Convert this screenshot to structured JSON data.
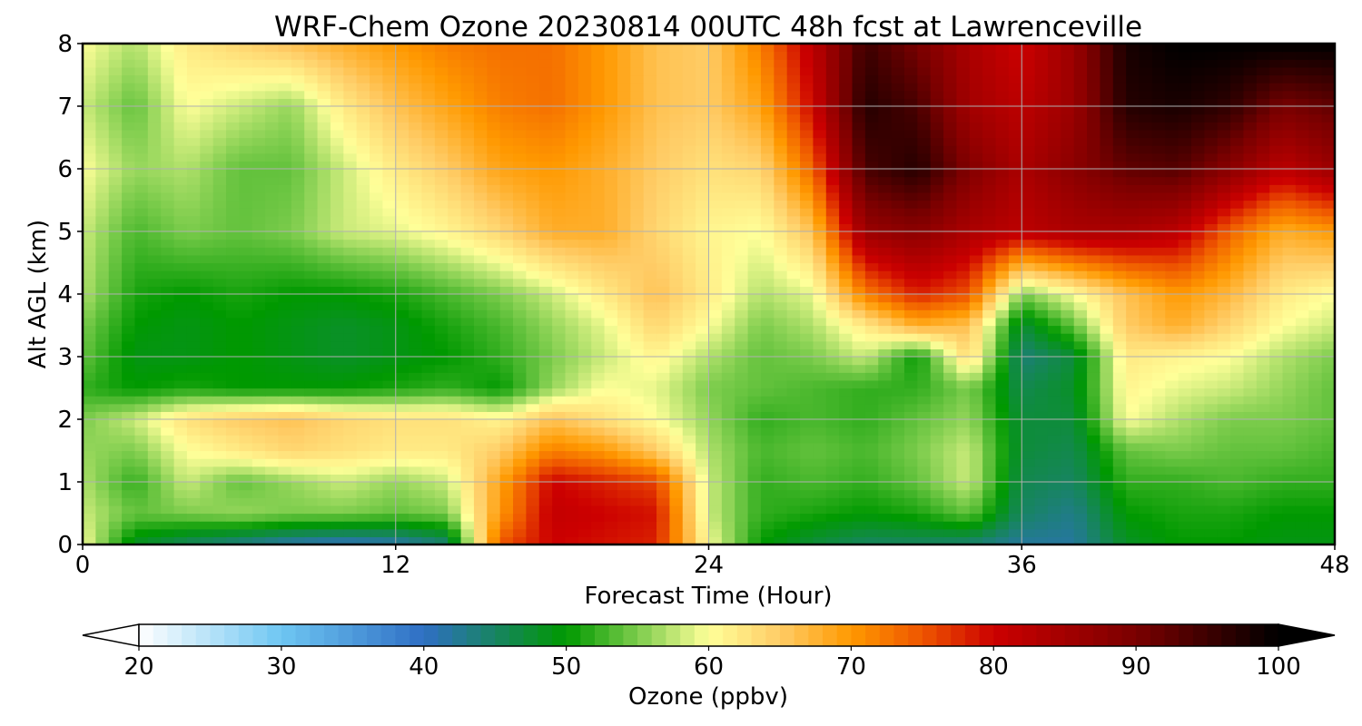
{
  "chart_data": {
    "type": "heatmap",
    "title": "WRF-Chem Ozone  20230814 00UTC 48h fcst at Lawrenceville",
    "xlabel": "Forecast Time (Hour)",
    "ylabel": "Alt AGL (km)",
    "xlim": [
      0,
      48
    ],
    "ylim": [
      0,
      8
    ],
    "x_ticks": [
      0,
      12,
      24,
      36,
      48
    ],
    "y_ticks": [
      0,
      1,
      2,
      3,
      4,
      5,
      6,
      7,
      8
    ],
    "grid": true,
    "colorbar": {
      "label": "Ozone  (ppbv)",
      "min": 20,
      "max": 100,
      "ticks": [
        20,
        30,
        40,
        50,
        60,
        70,
        80,
        90,
        100
      ],
      "extend": "both",
      "stops": [
        {
          "value": 20,
          "color": "#ffffff"
        },
        {
          "value": 30,
          "color": "#6ec6f2"
        },
        {
          "value": 40,
          "color": "#2f6fc4"
        },
        {
          "value": 50,
          "color": "#009900"
        },
        {
          "value": 55,
          "color": "#7ccc4c"
        },
        {
          "value": 60,
          "color": "#ffff99"
        },
        {
          "value": 65,
          "color": "#ffcc66"
        },
        {
          "value": 70,
          "color": "#ff9900"
        },
        {
          "value": 75,
          "color": "#ee5500"
        },
        {
          "value": 80,
          "color": "#cc0000"
        },
        {
          "value": 90,
          "color": "#7a0000"
        },
        {
          "value": 100,
          "color": "#000000"
        }
      ]
    },
    "hours": [
      0,
      2,
      4,
      6,
      8,
      10,
      12,
      14,
      16,
      18,
      20,
      22,
      24,
      26,
      28,
      30,
      32,
      34,
      36,
      38,
      40,
      42,
      44,
      46,
      48
    ],
    "altitudes_km": [
      0,
      0.5,
      1,
      1.5,
      2,
      2.5,
      3,
      3.5,
      4,
      5,
      6,
      7,
      8
    ],
    "ozone_ppbv": [
      [
        60,
        48,
        45,
        43,
        41,
        40,
        41,
        44,
        75,
        80,
        79,
        78,
        60,
        50,
        47,
        45,
        45,
        44,
        42,
        42,
        48,
        50,
        50,
        49,
        49
      ],
      [
        58,
        54,
        55,
        56,
        55,
        55,
        54,
        55,
        70,
        81,
        80,
        79,
        58,
        52,
        51,
        50,
        51,
        54,
        45,
        43,
        50,
        51,
        51,
        50,
        50
      ],
      [
        57,
        52,
        58,
        54,
        56,
        58,
        56,
        58,
        69,
        80,
        78,
        76,
        58,
        52,
        53,
        52,
        54,
        58,
        46,
        45,
        52,
        52,
        53,
        52,
        52
      ],
      [
        56,
        55,
        60,
        62,
        64,
        63,
        62,
        62,
        65,
        72,
        70,
        65,
        57,
        53,
        54,
        53,
        55,
        58,
        47,
        46,
        54,
        55,
        54,
        54,
        53
      ],
      [
        55,
        58,
        63,
        65,
        66,
        64,
        63,
        63,
        61,
        66,
        63,
        60,
        56,
        52,
        53,
        52,
        54,
        56,
        47,
        47,
        60,
        57,
        55,
        55,
        54
      ],
      [
        52,
        50,
        51,
        50,
        50,
        50,
        51,
        52,
        50,
        56,
        60,
        59,
        55,
        54,
        53,
        52,
        52,
        55,
        46,
        48,
        61,
        59,
        58,
        56,
        54
      ],
      [
        54,
        49,
        49,
        50,
        49,
        48,
        49,
        50,
        52,
        55,
        58,
        61,
        57,
        54,
        55,
        58,
        50,
        64,
        44,
        47,
        62,
        61,
        60,
        57,
        55
      ],
      [
        55,
        50,
        49,
        50,
        49,
        48,
        49,
        51,
        53,
        56,
        59,
        64,
        60,
        55,
        57,
        62,
        68,
        66,
        47,
        54,
        65,
        68,
        64,
        60,
        58
      ],
      [
        57,
        51,
        50,
        51,
        50,
        50,
        51,
        53,
        55,
        58,
        62,
        66,
        62,
        57,
        59,
        72,
        78,
        75,
        55,
        60,
        66,
        70,
        67,
        62,
        60
      ],
      [
        58,
        53,
        55,
        54,
        55,
        58,
        59,
        61,
        64,
        68,
        68,
        64,
        61,
        60,
        66,
        86,
        88,
        84,
        82,
        84,
        84,
        82,
        74,
        68,
        70
      ],
      [
        60,
        56,
        57,
        54,
        54,
        58,
        62,
        65,
        69,
        70,
        68,
        65,
        63,
        64,
        74,
        94,
        97,
        89,
        84,
        88,
        92,
        93,
        88,
        82,
        86
      ],
      [
        58,
        54,
        60,
        58,
        56,
        62,
        66,
        69,
        72,
        73,
        70,
        66,
        65,
        69,
        80,
        97,
        94,
        85,
        82,
        86,
        97,
        98,
        96,
        90,
        92
      ],
      [
        60,
        57,
        62,
        64,
        66,
        68,
        70,
        72,
        73,
        73,
        70,
        66,
        65,
        72,
        82,
        95,
        90,
        84,
        80,
        86,
        98,
        100,
        100,
        100,
        100
      ]
    ]
  }
}
